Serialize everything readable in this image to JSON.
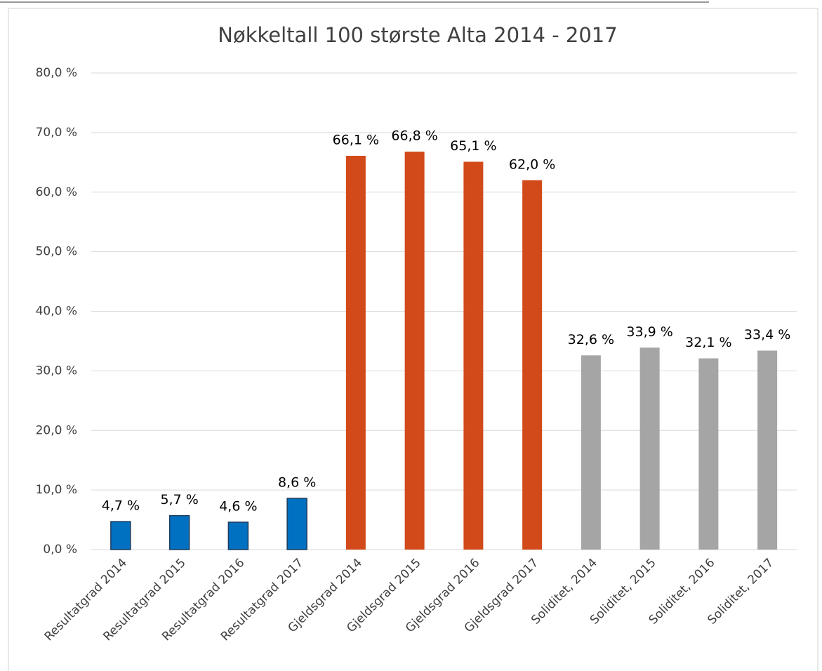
{
  "chart_data": {
    "type": "bar",
    "title": "Nøkkeltall 100 største Alta 2014 - 2017",
    "categories": [
      "Resultatgrad 2014",
      "Resultatgrad 2015",
      "Resultatgrad 2016",
      "Resultatgrad 2017",
      "Gjeldsgrad 2014",
      "Gjeldsgrad 2015",
      "Gjeldsgrad 2016",
      "Gjeldsgrad 2017",
      "Soliditet, 2014",
      "Soliditet, 2015",
      "Soliditet, 2016",
      "Soliditet, 2017"
    ],
    "values": [
      4.7,
      5.7,
      4.6,
      8.6,
      66.1,
      66.8,
      65.1,
      62.0,
      32.6,
      33.9,
      32.1,
      33.4
    ],
    "value_labels": [
      "4,7 %",
      "5,7 %",
      "4,6 %",
      "8,6 %",
      "66,1 %",
      "66,8 %",
      "65,1 %",
      "62,0 %",
      "32,6 %",
      "33,9 %",
      "32,1 %",
      "33,4 %"
    ],
    "colors": [
      "#0070c0",
      "#0070c0",
      "#0070c0",
      "#0070c0",
      "#d24a1a",
      "#d24a1a",
      "#d24a1a",
      "#d24a1a",
      "#a5a5a5",
      "#a5a5a5",
      "#a5a5a5",
      "#a5a5a5"
    ],
    "ylim": [
      0,
      80
    ],
    "yticks": [
      {
        "value": 0,
        "label": "0,0 %"
      },
      {
        "value": 10,
        "label": "10,0 %"
      },
      {
        "value": 20,
        "label": "20,0 %"
      },
      {
        "value": 30,
        "label": "30,0 %"
      },
      {
        "value": 40,
        "label": "40,0 %"
      },
      {
        "value": 50,
        "label": "50,0 %"
      },
      {
        "value": 60,
        "label": "60,0 %"
      },
      {
        "value": 70,
        "label": "70,0 %"
      },
      {
        "value": 80,
        "label": "80,0 %"
      }
    ],
    "grid": true
  }
}
